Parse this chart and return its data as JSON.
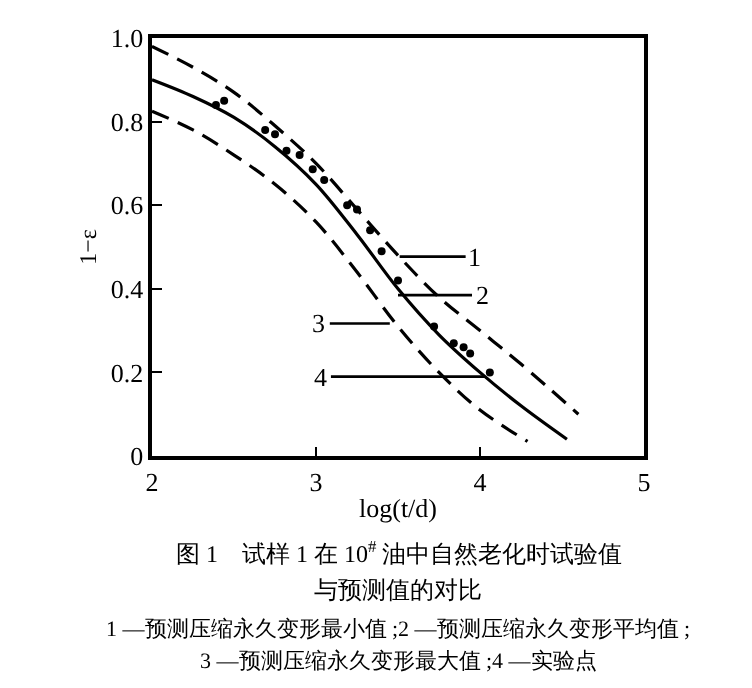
{
  "chart_data": {
    "type": "line",
    "xlabel": "log(t/d)",
    "ylabel": "1−ε",
    "xlim": [
      2,
      5
    ],
    "xticks": [
      2,
      3,
      4,
      5
    ],
    "ylim": [
      0,
      1.0
    ],
    "yticks": [
      {
        "value": 0,
        "label": "0"
      },
      0.2,
      0.4,
      0.6,
      0.8,
      {
        "value": 1.0,
        "label": "1.0"
      }
    ],
    "series": [
      {
        "color": "#000000",
        "line_style": "dashed",
        "marker": "none",
        "x": [
          2,
          2.25,
          2.5,
          2.75,
          3,
          3.25,
          3.5,
          3.75,
          4,
          4.25,
          4.6
        ],
        "values": [
          0.98,
          0.93,
          0.87,
          0.79,
          0.7,
          0.59,
          0.48,
          0.38,
          0.3,
          0.22,
          0.1
        ]
      },
      {
        "color": "#000000",
        "line_style": "solid",
        "marker": "none",
        "x": [
          2,
          2.25,
          2.5,
          2.75,
          3,
          3.25,
          3.5,
          3.75,
          4,
          4.25,
          4.53
        ],
        "values": [
          0.9,
          0.86,
          0.81,
          0.74,
          0.65,
          0.53,
          0.4,
          0.29,
          0.2,
          0.12,
          0.04
        ]
      },
      {
        "color": "#000000",
        "line_style": "dashed",
        "marker": "none",
        "x": [
          2,
          2.25,
          2.5,
          2.75,
          3,
          3.25,
          3.5,
          3.75,
          4,
          4.29
        ],
        "values": [
          0.825,
          0.78,
          0.72,
          0.65,
          0.56,
          0.44,
          0.31,
          0.2,
          0.11,
          0.035
        ]
      },
      {
        "type": "scatter",
        "color": "#000000",
        "marker": "circle",
        "x": [
          2.39,
          2.44,
          2.69,
          2.75,
          2.82,
          2.9,
          2.98,
          3.05,
          3.19,
          3.25,
          3.33,
          3.4,
          3.5,
          3.72,
          3.84,
          3.9,
          3.94,
          4.06
        ],
        "values": [
          0.84,
          0.85,
          0.78,
          0.77,
          0.73,
          0.72,
          0.686,
          0.66,
          0.6,
          0.59,
          0.54,
          0.49,
          0.42,
          0.31,
          0.27,
          0.26,
          0.245,
          0.2
        ]
      }
    ],
    "annotations": [
      {
        "text": "1",
        "x": 3.51,
        "y": 0.477
      },
      {
        "text": "2",
        "x": 3.5,
        "y": 0.385
      },
      {
        "text": "3",
        "x": 3.45,
        "y": 0.317
      },
      {
        "text": "4",
        "x": 4.03,
        "y": 0.19
      },
      "图 1　试样 1 在 10$^{#}$ 油中自然老化时试验值",
      "与预测值的对比",
      "1 —预测压缩永久变形最小值 ;2 —预测压缩永久变形平均值 ;",
      "3 —预测压缩永久变形最大值 ;4 —实验点"
    ]
  }
}
